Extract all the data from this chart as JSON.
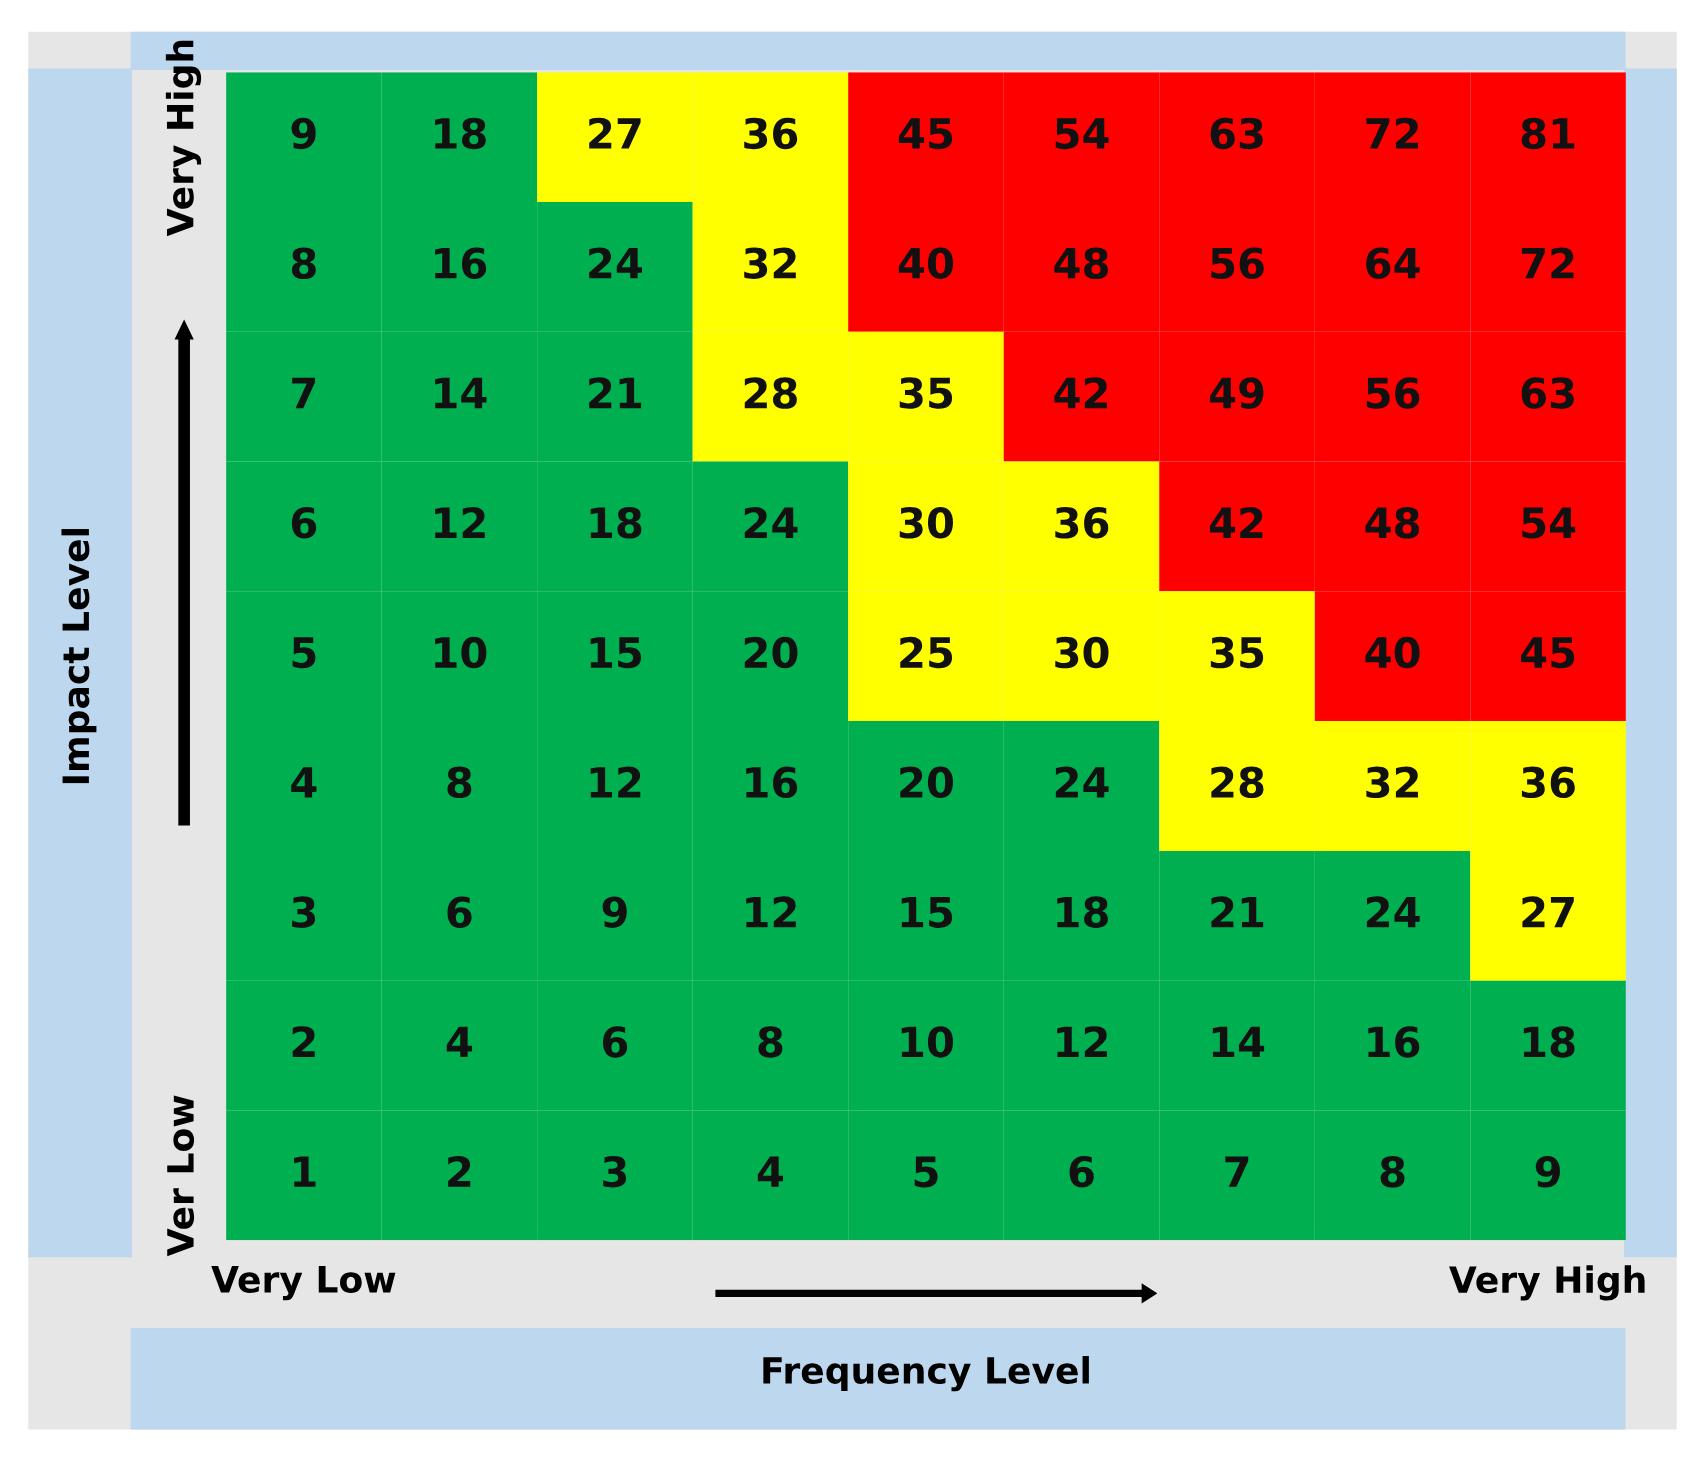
{
  "chart_data": {
    "type": "heatmap",
    "xlabel": "Frequency Level",
    "ylabel": "Impact Level",
    "categories": [
      "Very Low",
      null,
      null,
      null,
      null,
      null,
      null,
      null,
      "Very High"
    ],
    "y_categories": [
      "Very High",
      null,
      null,
      null,
      null,
      null,
      null,
      null,
      "Ver Low"
    ],
    "cells": [
      [
        9,
        18,
        27,
        36,
        45,
        54,
        63,
        72,
        81
      ],
      [
        8,
        16,
        24,
        32,
        40,
        48,
        56,
        64,
        72
      ],
      [
        7,
        14,
        21,
        28,
        35,
        42,
        49,
        56,
        63
      ],
      [
        6,
        12,
        18,
        24,
        30,
        36,
        42,
        48,
        54
      ],
      [
        5,
        10,
        15,
        20,
        25,
        30,
        35,
        40,
        45
      ],
      [
        4,
        8,
        12,
        16,
        20,
        24,
        28,
        32,
        36
      ],
      [
        3,
        6,
        9,
        12,
        15,
        18,
        21,
        24,
        27
      ],
      [
        2,
        4,
        6,
        8,
        10,
        12,
        14,
        16,
        18
      ],
      [
        1,
        2,
        3,
        4,
        5,
        6,
        7,
        8,
        9
      ]
    ],
    "colors": [
      [
        "#00b050",
        "#00b050",
        "#ffff00",
        "#ffff00",
        "#ff0000",
        "#ff0000",
        "#ff0000",
        "#ff0000",
        "#ff0000"
      ],
      [
        "#00b050",
        "#00b050",
        "#00b050",
        "#ffff00",
        "#ff0000",
        "#ff0000",
        "#ff0000",
        "#ff0000",
        "#ff0000"
      ],
      [
        "#00b050",
        "#00b050",
        "#00b050",
        "#ffff00",
        "#ffff00",
        "#ff0000",
        "#ff0000",
        "#ff0000",
        "#ff0000"
      ],
      [
        "#00b050",
        "#00b050",
        "#00b050",
        "#00b050",
        "#ffff00",
        "#ffff00",
        "#ff0000",
        "#ff0000",
        "#ff0000"
      ],
      [
        "#00b050",
        "#00b050",
        "#00b050",
        "#00b050",
        "#ffff00",
        "#ffff00",
        "#ffff00",
        "#ff0000",
        "#ff0000"
      ],
      [
        "#00b050",
        "#00b050",
        "#00b050",
        "#00b050",
        "#00b050",
        "#00b050",
        "#ffff00",
        "#ffff00",
        "#ffff00"
      ],
      [
        "#00b050",
        "#00b050",
        "#00b050",
        "#00b050",
        "#00b050",
        "#00b050",
        "#00b050",
        "#00b050",
        "#ffff00"
      ],
      [
        "#00b050",
        "#00b050",
        "#00b050",
        "#00b050",
        "#00b050",
        "#00b050",
        "#00b050",
        "#00b050",
        "#00b050"
      ],
      [
        "#00b050",
        "#00b050",
        "#00b050",
        "#00b050",
        "#00b050",
        "#00b050",
        "#00b050",
        "#00b050",
        "#00b050"
      ]
    ],
    "data_labels": true
  }
}
